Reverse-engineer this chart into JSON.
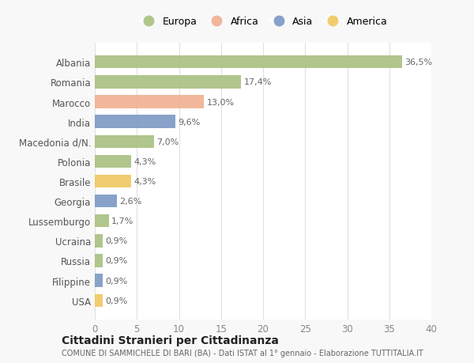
{
  "categories": [
    "Albania",
    "Romania",
    "Marocco",
    "India",
    "Macedonia d/N.",
    "Polonia",
    "Brasile",
    "Georgia",
    "Lussemburgo",
    "Ucraina",
    "Russia",
    "Filippine",
    "USA"
  ],
  "values": [
    36.5,
    17.4,
    13.0,
    9.6,
    7.0,
    4.3,
    4.3,
    2.6,
    1.7,
    0.9,
    0.9,
    0.9,
    0.9
  ],
  "labels": [
    "36,5%",
    "17,4%",
    "13,0%",
    "9,6%",
    "7,0%",
    "4,3%",
    "4,3%",
    "2,6%",
    "1,7%",
    "0,9%",
    "0,9%",
    "0,9%",
    "0,9%"
  ],
  "continent": [
    "Europa",
    "Europa",
    "Africa",
    "Asia",
    "Europa",
    "Europa",
    "America",
    "Asia",
    "Europa",
    "Europa",
    "Europa",
    "Asia",
    "America"
  ],
  "colors": {
    "Europa": "#a8c080",
    "Africa": "#f0b090",
    "Asia": "#7b98c4",
    "America": "#f0c860"
  },
  "legend_order": [
    "Europa",
    "Africa",
    "Asia",
    "America"
  ],
  "title": "Cittadini Stranieri per Cittadinanza",
  "subtitle": "COMUNE DI SAMMICHELE DI BARI (BA) - Dati ISTAT al 1° gennaio - Elaborazione TUTTITALIA.IT",
  "xlim": [
    0,
    40
  ],
  "xticks": [
    0,
    5,
    10,
    15,
    20,
    25,
    30,
    35,
    40
  ],
  "plot_bg_color": "#ffffff",
  "fig_bg_color": "#f8f8f8",
  "grid_color": "#e0e0e0"
}
